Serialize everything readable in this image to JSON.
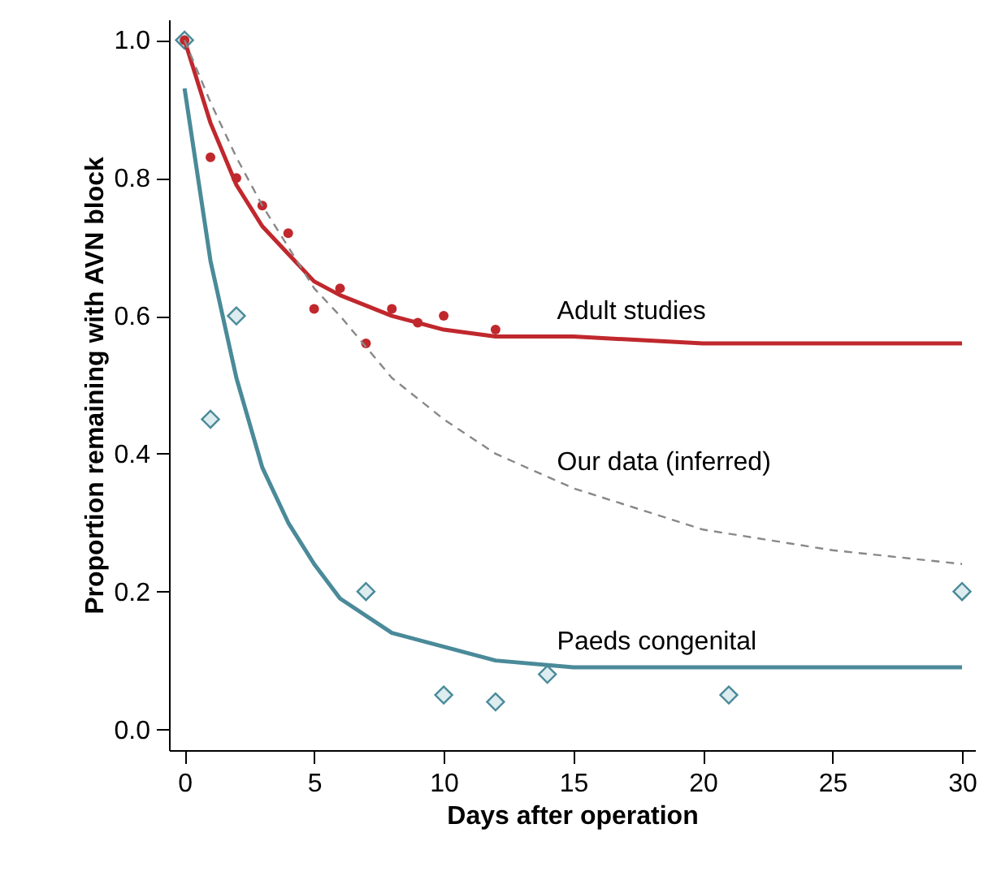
{
  "chart_data": {
    "type": "line",
    "xlabel": "Days after operation",
    "ylabel": "Proportion remaining with AVN block",
    "xlim": [
      -0.6,
      30.5
    ],
    "ylim": [
      -0.03,
      1.03
    ],
    "xticks": [
      0,
      5,
      10,
      15,
      20,
      25,
      30
    ],
    "yticks": [
      {
        "value": 0,
        "label": "0.0"
      },
      0.2,
      0.4,
      0.6,
      0.8,
      {
        "value": 1,
        "label": "1.0"
      }
    ],
    "grid": false,
    "series": [
      {
        "type": "scatter",
        "color": "#4a8a99",
        "marker": "diamond",
        "x": [
          0,
          1,
          2,
          7,
          10,
          12,
          14,
          21,
          30
        ],
        "values": [
          1.0,
          0.45,
          0.6,
          0.2,
          0.05,
          0.04,
          0.08,
          0.05,
          0.2
        ]
      },
      {
        "type": "scatter",
        "color": "#c0282d",
        "marker": "circle",
        "x": [
          0,
          1,
          2,
          3,
          4,
          5,
          6,
          7,
          8,
          9,
          10,
          12
        ],
        "values": [
          1.0,
          0.83,
          0.8,
          0.76,
          0.72,
          0.61,
          0.64,
          0.56,
          0.61,
          0.59,
          0.6,
          0.58
        ]
      },
      {
        "name": "Adult studies",
        "color": "#c0282d",
        "line_style": "solid",
        "x": [
          0,
          1,
          2,
          3,
          4,
          5,
          6,
          8,
          10,
          12,
          15,
          20,
          25,
          30
        ],
        "values": [
          1.0,
          0.88,
          0.79,
          0.73,
          0.69,
          0.65,
          0.63,
          0.6,
          0.58,
          0.57,
          0.57,
          0.56,
          0.56,
          0.56
        ]
      },
      {
        "name": "Our data (inferred)",
        "color": "#888888",
        "line_style": "dashed",
        "x": [
          0,
          1,
          2,
          3,
          4,
          5,
          6,
          8,
          10,
          12,
          15,
          20,
          25,
          30
        ],
        "values": [
          1.0,
          0.91,
          0.83,
          0.76,
          0.7,
          0.64,
          0.6,
          0.51,
          0.45,
          0.4,
          0.35,
          0.29,
          0.26,
          0.24
        ]
      },
      {
        "name": "Paeds congenital",
        "color": "#4a8a99",
        "line_style": "solid",
        "x": [
          0,
          1,
          2,
          3,
          4,
          5,
          6,
          8,
          10,
          12,
          15,
          20,
          25,
          30
        ],
        "values": [
          0.93,
          0.68,
          0.51,
          0.38,
          0.3,
          0.24,
          0.19,
          0.14,
          0.12,
          0.1,
          0.09,
          0.09,
          0.09,
          0.09
        ]
      }
    ]
  }
}
